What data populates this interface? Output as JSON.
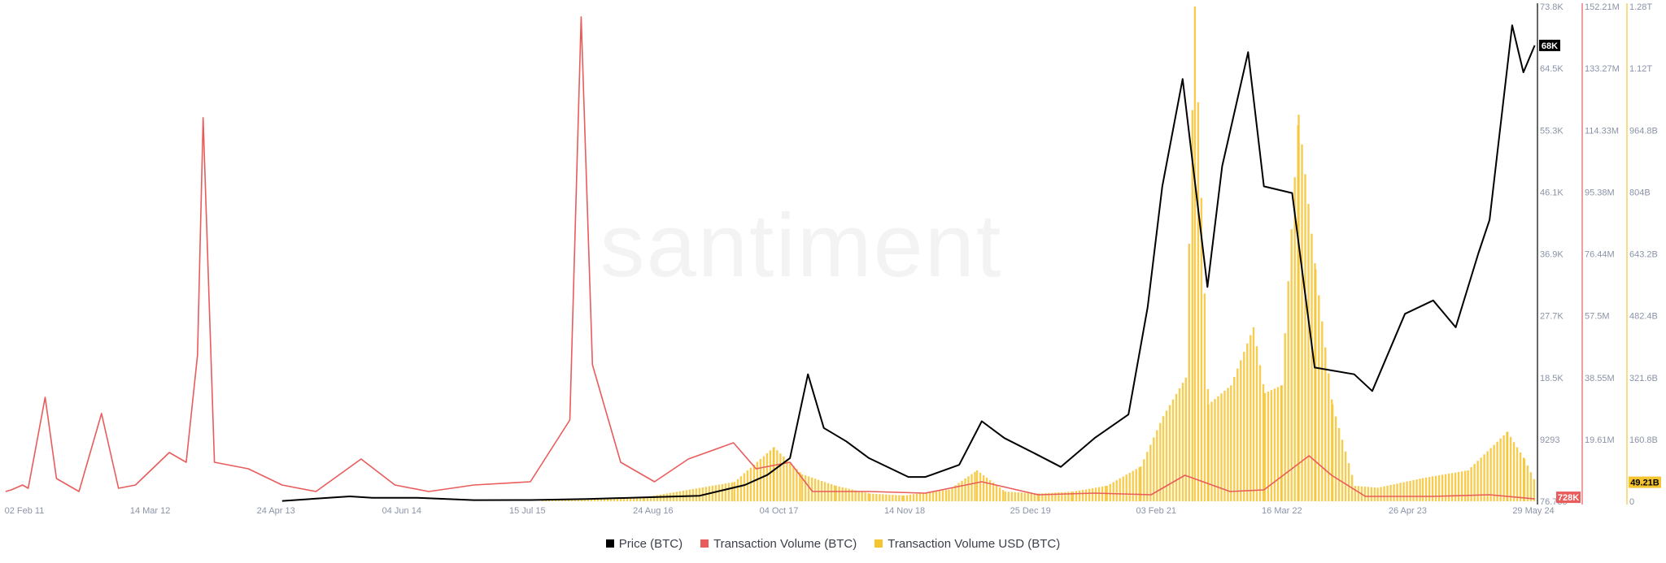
{
  "chart_data": {
    "type": "line",
    "watermark": "santiment",
    "x_ticks": [
      "02 Feb 11",
      "14 Mar 12",
      "24 Apr 13",
      "04 Jun 14",
      "15 Jul 15",
      "24 Aug 16",
      "04 Oct 17",
      "14 Nov 18",
      "25 Dec 19",
      "03 Feb 21",
      "16 Mar 22",
      "26 Apr 23",
      "29 May 24"
    ],
    "axes": {
      "price": {
        "ticks": [
          "73.8K",
          "64.5K",
          "55.3K",
          "46.1K",
          "36.9K",
          "27.7K",
          "18.5K",
          "9293",
          "76.755"
        ],
        "range": [
          76.755,
          73800
        ],
        "color": "#6a7390"
      },
      "volume_btc": {
        "ticks": [
          "152.21M",
          "133.27M",
          "114.33M",
          "95.38M",
          "76.44M",
          "57.5M",
          "38.55M",
          "19.61M"
        ],
        "range": [
          0,
          152210000
        ],
        "color": "#6a7390"
      },
      "volume_usd": {
        "ticks": [
          "1.28T",
          "1.12T",
          "964.8B",
          "804B",
          "643.2B",
          "482.4B",
          "321.6B",
          "160.8B",
          "0"
        ],
        "range": [
          0,
          1280000000000
        ],
        "color": "#6a7390"
      }
    },
    "badges": {
      "price": {
        "text": "68K",
        "bg": "#000000",
        "fg": "#ffffff"
      },
      "volume_btc": {
        "text": "728K",
        "bg": "#e85c5c",
        "fg": "#ffffff"
      },
      "volume_usd": {
        "text": "49.21B",
        "bg": "#f5c431",
        "fg": "#000000"
      }
    },
    "series": [
      {
        "name": "Price (BTC)",
        "color": "#000000",
        "axis": "price",
        "points": [
          [
            2013.3,
            120
          ],
          [
            2013.9,
            800
          ],
          [
            2014.1,
            600
          ],
          [
            2014.5,
            580
          ],
          [
            2015.0,
            250
          ],
          [
            2015.5,
            260
          ],
          [
            2016.0,
            420
          ],
          [
            2016.5,
            650
          ],
          [
            2017.0,
            900
          ],
          [
            2017.4,
            2500
          ],
          [
            2017.6,
            4000
          ],
          [
            2017.8,
            6500
          ],
          [
            2017.96,
            19000
          ],
          [
            2018.1,
            11000
          ],
          [
            2018.3,
            9000
          ],
          [
            2018.5,
            6500
          ],
          [
            2018.85,
            3700
          ],
          [
            2019.0,
            3700
          ],
          [
            2019.3,
            5500
          ],
          [
            2019.5,
            12000
          ],
          [
            2019.7,
            9500
          ],
          [
            2019.97,
            7200
          ],
          [
            2020.2,
            5200
          ],
          [
            2020.5,
            9500
          ],
          [
            2020.8,
            13000
          ],
          [
            2020.97,
            29000
          ],
          [
            2021.1,
            47000
          ],
          [
            2021.28,
            63000
          ],
          [
            2021.5,
            32000
          ],
          [
            2021.63,
            50000
          ],
          [
            2021.86,
            67000
          ],
          [
            2022.0,
            47000
          ],
          [
            2022.25,
            46000
          ],
          [
            2022.45,
            20000
          ],
          [
            2022.8,
            19000
          ],
          [
            2022.96,
            16500
          ],
          [
            2023.25,
            28000
          ],
          [
            2023.5,
            30000
          ],
          [
            2023.7,
            26000
          ],
          [
            2023.9,
            37000
          ],
          [
            2024.0,
            42000
          ],
          [
            2024.2,
            71000
          ],
          [
            2024.3,
            64000
          ],
          [
            2024.4,
            68000
          ]
        ]
      },
      {
        "name": "Transaction Volume (BTC)",
        "color": "#e85c5c",
        "axis": "volume_btc",
        "points": [
          [
            2010.85,
            3000000
          ],
          [
            2010.9,
            3500000
          ],
          [
            2011.0,
            5000000
          ],
          [
            2011.05,
            4000000
          ],
          [
            2011.2,
            32000000
          ],
          [
            2011.3,
            7000000
          ],
          [
            2011.5,
            3000000
          ],
          [
            2011.7,
            27000000
          ],
          [
            2011.85,
            4000000
          ],
          [
            2012.0,
            5000000
          ],
          [
            2012.3,
            15000000
          ],
          [
            2012.45,
            12000000
          ],
          [
            2012.55,
            45000000
          ],
          [
            2012.6,
            118000000
          ],
          [
            2012.7,
            12000000
          ],
          [
            2013.0,
            10000000
          ],
          [
            2013.3,
            5000000
          ],
          [
            2013.6,
            3000000
          ],
          [
            2014.0,
            13000000
          ],
          [
            2014.3,
            5000000
          ],
          [
            2014.6,
            3000000
          ],
          [
            2015.0,
            5000000
          ],
          [
            2015.5,
            6000000
          ],
          [
            2015.85,
            25000000
          ],
          [
            2015.95,
            149000000
          ],
          [
            2016.05,
            42000000
          ],
          [
            2016.3,
            12000000
          ],
          [
            2016.6,
            6000000
          ],
          [
            2016.9,
            13000000
          ],
          [
            2017.3,
            18000000
          ],
          [
            2017.5,
            10000000
          ],
          [
            2017.8,
            12000000
          ],
          [
            2018.0,
            3000000
          ],
          [
            2018.5,
            3000000
          ],
          [
            2019.0,
            2500000
          ],
          [
            2019.5,
            6000000
          ],
          [
            2020.0,
            2000000
          ],
          [
            2020.5,
            2500000
          ],
          [
            2021.0,
            2000000
          ],
          [
            2021.3,
            8000000
          ],
          [
            2021.7,
            3000000
          ],
          [
            2022.0,
            3500000
          ],
          [
            2022.4,
            14000000
          ],
          [
            2022.6,
            8000000
          ],
          [
            2022.9,
            1500000
          ],
          [
            2023.5,
            1500000
          ],
          [
            2024.0,
            2000000
          ],
          [
            2024.4,
            728000
          ]
        ]
      },
      {
        "name": "Transaction Volume USD (BTC)",
        "color": "#f5c431",
        "axis": "volume_usd",
        "points": [
          [
            2015.6,
            5000000000
          ],
          [
            2016.5,
            10000000000
          ],
          [
            2017.3,
            50000000000
          ],
          [
            2017.65,
            140000000000
          ],
          [
            2017.9,
            70000000000
          ],
          [
            2018.2,
            40000000000
          ],
          [
            2018.5,
            20000000000
          ],
          [
            2018.8,
            15000000000
          ],
          [
            2019.2,
            30000000000
          ],
          [
            2019.45,
            80000000000
          ],
          [
            2019.7,
            25000000000
          ],
          [
            2020.0,
            20000000000
          ],
          [
            2020.3,
            25000000000
          ],
          [
            2020.6,
            40000000000
          ],
          [
            2020.9,
            90000000000
          ],
          [
            2021.1,
            220000000000
          ],
          [
            2021.3,
            320000000000
          ],
          [
            2021.38,
            1280000000000
          ],
          [
            2021.5,
            250000000000
          ],
          [
            2021.7,
            300000000000
          ],
          [
            2021.9,
            450000000000
          ],
          [
            2022.0,
            280000000000
          ],
          [
            2022.15,
            300000000000
          ],
          [
            2022.3,
            1000000000000
          ],
          [
            2022.45,
            600000000000
          ],
          [
            2022.6,
            250000000000
          ],
          [
            2022.8,
            40000000000
          ],
          [
            2023.0,
            35000000000
          ],
          [
            2023.4,
            60000000000
          ],
          [
            2023.8,
            80000000000
          ],
          [
            2024.15,
            180000000000
          ],
          [
            2024.3,
            110000000000
          ],
          [
            2024.4,
            49210000000
          ]
        ]
      }
    ],
    "x_range": [
      2010.8,
      2024.41
    ],
    "ylim": [
      0,
      1
    ]
  }
}
